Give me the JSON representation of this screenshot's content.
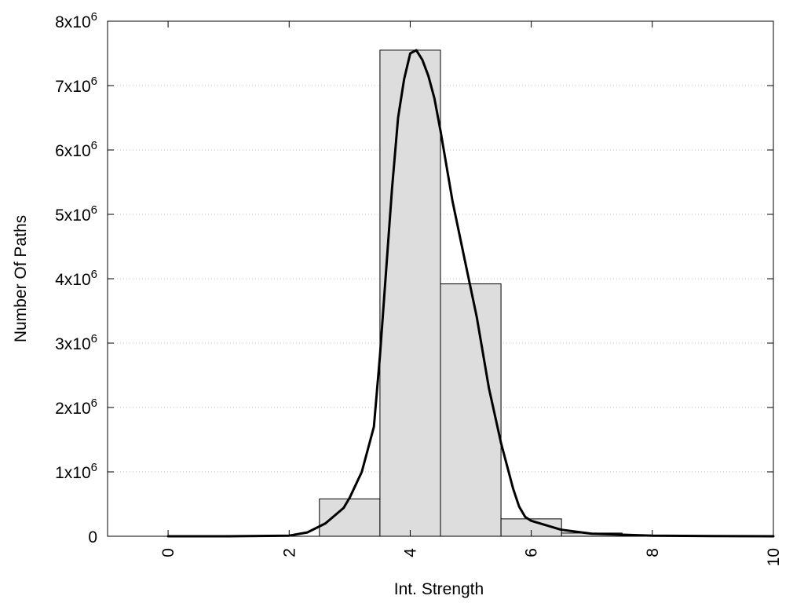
{
  "chart_data": {
    "type": "bar",
    "title": "",
    "xlabel": "Int. Strength",
    "ylabel": "Number Of Paths",
    "xlim": [
      -1,
      10
    ],
    "ylim": [
      0,
      8000000
    ],
    "x_ticks": [
      0,
      2,
      4,
      6,
      8,
      10
    ],
    "x_tick_labels": [
      "0",
      "2",
      "4",
      "6",
      "8",
      "10"
    ],
    "y_ticks": [
      {
        "value": 0,
        "label": "0",
        "exp": ""
      },
      {
        "value": 1000000,
        "label": "1x10",
        "exp": "6"
      },
      {
        "value": 2000000,
        "label": "2x10",
        "exp": "6"
      },
      {
        "value": 3000000,
        "label": "3x10",
        "exp": "6"
      },
      {
        "value": 4000000,
        "label": "4x10",
        "exp": "6"
      },
      {
        "value": 5000000,
        "label": "5x10",
        "exp": "6"
      },
      {
        "value": 6000000,
        "label": "6x10",
        "exp": "6"
      },
      {
        "value": 7000000,
        "label": "7x10",
        "exp": "6"
      },
      {
        "value": 8000000,
        "label": "8x10",
        "exp": "6"
      }
    ],
    "grid": "horizontal dotted",
    "bar_width": 1,
    "bars": {
      "x": [
        0,
        1,
        2,
        3,
        4,
        5,
        6,
        7,
        8,
        9
      ],
      "values": [
        0,
        0,
        0,
        580000,
        7550000,
        3920000,
        270000,
        50000,
        0,
        0
      ]
    },
    "curve": {
      "x": [
        0,
        1,
        2,
        2.3,
        2.6,
        2.9,
        3.0,
        3.2,
        3.4,
        3.5,
        3.6,
        3.7,
        3.8,
        3.9,
        4.0,
        4.1,
        4.2,
        4.3,
        4.4,
        4.5,
        4.7,
        4.9,
        5.1,
        5.3,
        5.5,
        5.7,
        5.8,
        5.9,
        6.0,
        6.5,
        7.0,
        8.0,
        9.0,
        10.0
      ],
      "values": [
        0,
        0,
        10000,
        60000,
        200000,
        440000,
        600000,
        1000000,
        1700000,
        2800000,
        4100000,
        5400000,
        6500000,
        7100000,
        7500000,
        7550000,
        7400000,
        7150000,
        6800000,
        6300000,
        5200000,
        4300000,
        3400000,
        2300000,
        1450000,
        740000,
        460000,
        300000,
        240000,
        100000,
        40000,
        10000,
        3000,
        0
      ]
    },
    "colors": {
      "bar_fill": "#dddddd",
      "bar_stroke": "#000000",
      "curve": "#000000",
      "grid": "#cccccc"
    }
  }
}
